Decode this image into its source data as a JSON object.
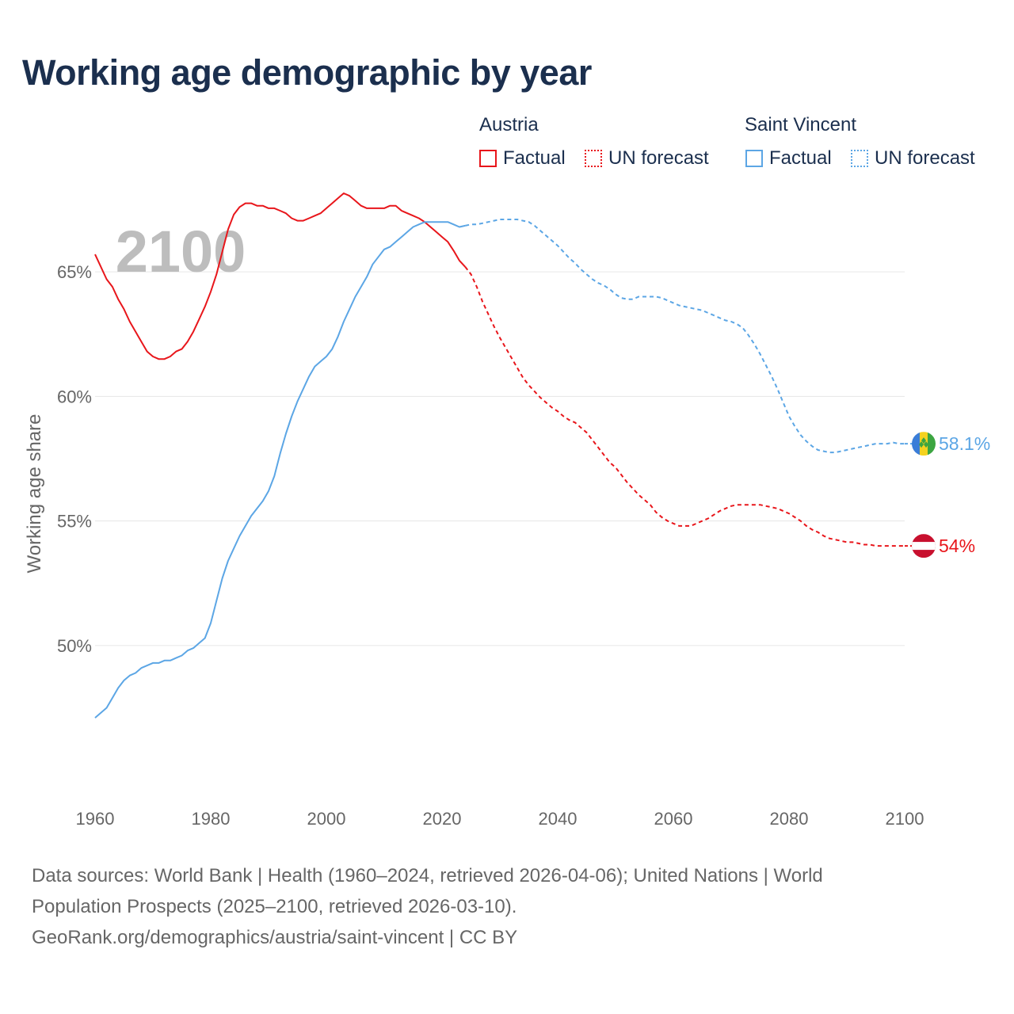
{
  "title": "Working age demographic by year",
  "colors": {
    "austria": "#e8161b",
    "saint_vincent": "#5ca6e5",
    "grid": "#e6e6e6",
    "axis_text": "#666666",
    "year_watermark": "#bdbdbd"
  },
  "legend": {
    "austria": {
      "title": "Austria",
      "factual": "Factual",
      "forecast": "UN forecast"
    },
    "saint_vincent": {
      "title": "Saint Vincent",
      "factual": "Factual",
      "forecast": "UN forecast"
    }
  },
  "year_watermark": "2100",
  "sources": {
    "line1": "Data sources: World Bank | Health (1960–2024, retrieved 2026-04-06); United Nations | World",
    "line2": "Population Prospects (2025–2100, retrieved 2026-03-10).",
    "line3": "GeoRank.org/demographics/austria/saint-vincent | CC BY"
  },
  "chart_data": {
    "type": "line",
    "title": "Working age demographic by year",
    "xlabel": "",
    "ylabel": "Working age share",
    "xlim": [
      1960,
      2100
    ],
    "ylim": [
      46.5,
      68.5
    ],
    "x_ticks": [
      1960,
      1980,
      2000,
      2020,
      2040,
      2060,
      2080,
      2100
    ],
    "y_ticks": [
      50,
      55,
      60,
      65
    ],
    "y_tick_labels": [
      "50%",
      "55%",
      "60%",
      "65%"
    ],
    "forecast_start": 2024,
    "series": [
      {
        "name": "Austria",
        "color_key": "austria",
        "end_label": "54%",
        "flag": "austria",
        "points": [
          [
            1960,
            65.7
          ],
          [
            1962,
            64.7
          ],
          [
            1963,
            64.4
          ],
          [
            1964,
            63.9
          ],
          [
            1965,
            63.5
          ],
          [
            1966,
            63.0
          ],
          [
            1968,
            62.2
          ],
          [
            1969,
            61.8
          ],
          [
            1970,
            61.6
          ],
          [
            1971,
            61.5
          ],
          [
            1972,
            61.5
          ],
          [
            1973,
            61.6
          ],
          [
            1974,
            61.8
          ],
          [
            1975,
            61.9
          ],
          [
            1976,
            62.2
          ],
          [
            1977,
            62.6
          ],
          [
            1978,
            63.1
          ],
          [
            1979,
            63.6
          ],
          [
            1980,
            64.2
          ],
          [
            1981,
            64.9
          ],
          [
            1982,
            65.8
          ],
          [
            1983,
            66.7
          ],
          [
            1984,
            67.3
          ],
          [
            1985,
            67.6
          ],
          [
            1986,
            67.75
          ],
          [
            1987,
            67.75
          ],
          [
            1988,
            67.65
          ],
          [
            1989,
            67.65
          ],
          [
            1990,
            67.55
          ],
          [
            1991,
            67.55
          ],
          [
            1992,
            67.45
          ],
          [
            1993,
            67.35
          ],
          [
            1994,
            67.15
          ],
          [
            1995,
            67.05
          ],
          [
            1996,
            67.05
          ],
          [
            1997,
            67.15
          ],
          [
            1998,
            67.25
          ],
          [
            1999,
            67.35
          ],
          [
            2000,
            67.55
          ],
          [
            2001,
            67.75
          ],
          [
            2002,
            67.95
          ],
          [
            2003,
            68.15
          ],
          [
            2004,
            68.05
          ],
          [
            2005,
            67.85
          ],
          [
            2006,
            67.65
          ],
          [
            2007,
            67.55
          ],
          [
            2008,
            67.55
          ],
          [
            2009,
            67.55
          ],
          [
            2010,
            67.55
          ],
          [
            2011,
            67.65
          ],
          [
            2012,
            67.65
          ],
          [
            2013,
            67.45
          ],
          [
            2014,
            67.35
          ],
          [
            2015,
            67.25
          ],
          [
            2016,
            67.15
          ],
          [
            2017,
            67.0
          ],
          [
            2018,
            66.8
          ],
          [
            2019,
            66.6
          ],
          [
            2020,
            66.4
          ],
          [
            2021,
            66.2
          ],
          [
            2022,
            65.85
          ],
          [
            2023,
            65.45
          ],
          [
            2024,
            65.2
          ],
          [
            2025,
            64.9
          ],
          [
            2026,
            64.4
          ],
          [
            2027,
            63.8
          ],
          [
            2028,
            63.3
          ],
          [
            2029,
            62.8
          ],
          [
            2030,
            62.35
          ],
          [
            2031,
            61.95
          ],
          [
            2032,
            61.55
          ],
          [
            2033,
            61.15
          ],
          [
            2034,
            60.75
          ],
          [
            2035,
            60.45
          ],
          [
            2036,
            60.2
          ],
          [
            2037,
            59.95
          ],
          [
            2038,
            59.75
          ],
          [
            2039,
            59.55
          ],
          [
            2040,
            59.4
          ],
          [
            2041,
            59.2
          ],
          [
            2042,
            59.05
          ],
          [
            2043,
            58.95
          ],
          [
            2044,
            58.75
          ],
          [
            2045,
            58.55
          ],
          [
            2046,
            58.25
          ],
          [
            2047,
            57.95
          ],
          [
            2048,
            57.65
          ],
          [
            2049,
            57.35
          ],
          [
            2050,
            57.15
          ],
          [
            2051,
            56.85
          ],
          [
            2052,
            56.55
          ],
          [
            2053,
            56.3
          ],
          [
            2054,
            56.05
          ],
          [
            2055,
            55.85
          ],
          [
            2056,
            55.65
          ],
          [
            2057,
            55.35
          ],
          [
            2058,
            55.15
          ],
          [
            2059,
            55.0
          ],
          [
            2060,
            54.9
          ],
          [
            2061,
            54.8
          ],
          [
            2062,
            54.8
          ],
          [
            2063,
            54.8
          ],
          [
            2064,
            54.9
          ],
          [
            2065,
            55.0
          ],
          [
            2066,
            55.1
          ],
          [
            2067,
            55.25
          ],
          [
            2068,
            55.4
          ],
          [
            2069,
            55.5
          ],
          [
            2070,
            55.6
          ],
          [
            2071,
            55.65
          ],
          [
            2072,
            55.65
          ],
          [
            2073,
            55.65
          ],
          [
            2074,
            55.65
          ],
          [
            2075,
            55.65
          ],
          [
            2076,
            55.6
          ],
          [
            2077,
            55.55
          ],
          [
            2078,
            55.5
          ],
          [
            2079,
            55.4
          ],
          [
            2080,
            55.3
          ],
          [
            2081,
            55.15
          ],
          [
            2082,
            55.0
          ],
          [
            2083,
            54.8
          ],
          [
            2084,
            54.65
          ],
          [
            2085,
            54.55
          ],
          [
            2086,
            54.4
          ],
          [
            2087,
            54.3
          ],
          [
            2088,
            54.25
          ],
          [
            2089,
            54.2
          ],
          [
            2090,
            54.15
          ],
          [
            2091,
            54.15
          ],
          [
            2092,
            54.1
          ],
          [
            2093,
            54.05
          ],
          [
            2094,
            54.05
          ],
          [
            2095,
            54.0
          ],
          [
            2096,
            54.0
          ],
          [
            2097,
            54.0
          ],
          [
            2098,
            54.0
          ],
          [
            2099,
            54.0
          ],
          [
            2100,
            54.0
          ]
        ]
      },
      {
        "name": "Saint Vincent",
        "color_key": "saint_vincent",
        "end_label": "58.1%",
        "flag": "saint_vincent",
        "points": [
          [
            1960,
            47.1
          ],
          [
            1962,
            47.5
          ],
          [
            1963,
            47.9
          ],
          [
            1964,
            48.3
          ],
          [
            1965,
            48.6
          ],
          [
            1966,
            48.8
          ],
          [
            1967,
            48.9
          ],
          [
            1968,
            49.1
          ],
          [
            1969,
            49.2
          ],
          [
            1970,
            49.3
          ],
          [
            1971,
            49.3
          ],
          [
            1972,
            49.4
          ],
          [
            1973,
            49.4
          ],
          [
            1974,
            49.5
          ],
          [
            1975,
            49.6
          ],
          [
            1976,
            49.8
          ],
          [
            1977,
            49.9
          ],
          [
            1978,
            50.1
          ],
          [
            1979,
            50.3
          ],
          [
            1980,
            50.9
          ],
          [
            1981,
            51.8
          ],
          [
            1982,
            52.7
          ],
          [
            1983,
            53.4
          ],
          [
            1984,
            53.9
          ],
          [
            1985,
            54.4
          ],
          [
            1986,
            54.8
          ],
          [
            1987,
            55.2
          ],
          [
            1988,
            55.5
          ],
          [
            1989,
            55.8
          ],
          [
            1990,
            56.2
          ],
          [
            1991,
            56.8
          ],
          [
            1992,
            57.7
          ],
          [
            1993,
            58.5
          ],
          [
            1994,
            59.2
          ],
          [
            1995,
            59.8
          ],
          [
            1996,
            60.3
          ],
          [
            1997,
            60.8
          ],
          [
            1998,
            61.2
          ],
          [
            1999,
            61.4
          ],
          [
            2000,
            61.6
          ],
          [
            2001,
            61.9
          ],
          [
            2002,
            62.4
          ],
          [
            2003,
            63.0
          ],
          [
            2004,
            63.5
          ],
          [
            2005,
            64.0
          ],
          [
            2006,
            64.4
          ],
          [
            2007,
            64.8
          ],
          [
            2008,
            65.3
          ],
          [
            2009,
            65.6
          ],
          [
            2010,
            65.9
          ],
          [
            2011,
            66.0
          ],
          [
            2012,
            66.2
          ],
          [
            2013,
            66.4
          ],
          [
            2014,
            66.6
          ],
          [
            2015,
            66.8
          ],
          [
            2016,
            66.9
          ],
          [
            2017,
            67.0
          ],
          [
            2018,
            67.0
          ],
          [
            2019,
            67.0
          ],
          [
            2020,
            67.0
          ],
          [
            2021,
            67.0
          ],
          [
            2022,
            66.9
          ],
          [
            2023,
            66.8
          ],
          [
            2024,
            66.85
          ],
          [
            2025,
            66.9
          ],
          [
            2026,
            66.9
          ],
          [
            2027,
            66.95
          ],
          [
            2028,
            67.0
          ],
          [
            2029,
            67.05
          ],
          [
            2030,
            67.1
          ],
          [
            2031,
            67.1
          ],
          [
            2032,
            67.1
          ],
          [
            2033,
            67.1
          ],
          [
            2034,
            67.05
          ],
          [
            2035,
            67.0
          ],
          [
            2036,
            66.85
          ],
          [
            2037,
            66.65
          ],
          [
            2038,
            66.45
          ],
          [
            2039,
            66.25
          ],
          [
            2040,
            66.05
          ],
          [
            2041,
            65.8
          ],
          [
            2042,
            65.55
          ],
          [
            2043,
            65.35
          ],
          [
            2044,
            65.1
          ],
          [
            2045,
            64.9
          ],
          [
            2046,
            64.7
          ],
          [
            2047,
            64.55
          ],
          [
            2048,
            64.45
          ],
          [
            2049,
            64.3
          ],
          [
            2050,
            64.1
          ],
          [
            2051,
            63.95
          ],
          [
            2052,
            63.9
          ],
          [
            2053,
            63.9
          ],
          [
            2054,
            64.0
          ],
          [
            2055,
            64.0
          ],
          [
            2056,
            64.0
          ],
          [
            2057,
            64.0
          ],
          [
            2058,
            63.95
          ],
          [
            2059,
            63.85
          ],
          [
            2060,
            63.75
          ],
          [
            2061,
            63.65
          ],
          [
            2062,
            63.6
          ],
          [
            2063,
            63.55
          ],
          [
            2064,
            63.5
          ],
          [
            2065,
            63.45
          ],
          [
            2066,
            63.35
          ],
          [
            2067,
            63.25
          ],
          [
            2068,
            63.15
          ],
          [
            2069,
            63.05
          ],
          [
            2070,
            63.0
          ],
          [
            2071,
            62.9
          ],
          [
            2072,
            62.75
          ],
          [
            2073,
            62.45
          ],
          [
            2074,
            62.1
          ],
          [
            2075,
            61.7
          ],
          [
            2076,
            61.25
          ],
          [
            2077,
            60.8
          ],
          [
            2078,
            60.3
          ],
          [
            2079,
            59.75
          ],
          [
            2080,
            59.2
          ],
          [
            2081,
            58.8
          ],
          [
            2082,
            58.45
          ],
          [
            2083,
            58.2
          ],
          [
            2084,
            58.0
          ],
          [
            2085,
            57.85
          ],
          [
            2086,
            57.8
          ],
          [
            2087,
            57.75
          ],
          [
            2088,
            57.75
          ],
          [
            2089,
            57.8
          ],
          [
            2090,
            57.85
          ],
          [
            2091,
            57.9
          ],
          [
            2092,
            57.95
          ],
          [
            2093,
            58.0
          ],
          [
            2094,
            58.05
          ],
          [
            2095,
            58.1
          ],
          [
            2096,
            58.1
          ],
          [
            2097,
            58.1
          ],
          [
            2098,
            58.15
          ],
          [
            2099,
            58.1
          ],
          [
            2100,
            58.1
          ]
        ]
      }
    ]
  }
}
